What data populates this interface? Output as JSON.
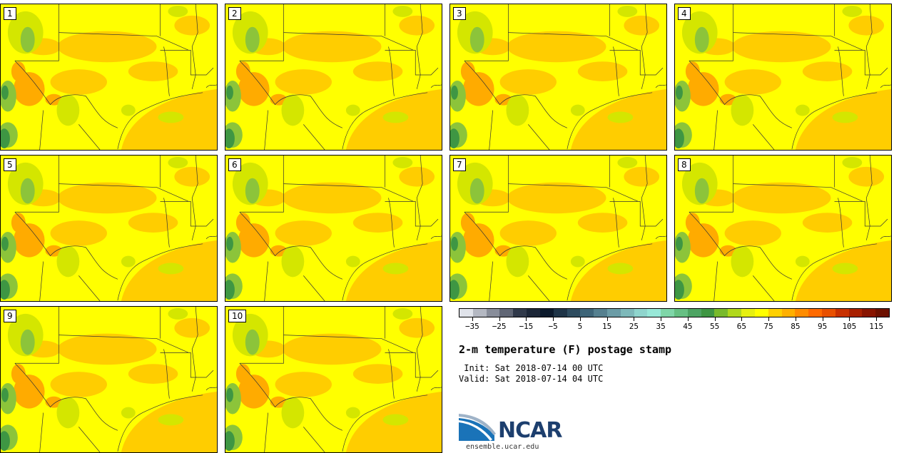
{
  "panels": [
    {
      "label": "1"
    },
    {
      "label": "2"
    },
    {
      "label": "3"
    },
    {
      "label": "4"
    },
    {
      "label": "5"
    },
    {
      "label": "6"
    },
    {
      "label": "7"
    },
    {
      "label": "8"
    },
    {
      "label": "9"
    },
    {
      "label": "10"
    }
  ],
  "colorbar": {
    "colors": [
      "#e0e3ea",
      "#b4b8c2",
      "#888d9a",
      "#606675",
      "#30394a",
      "#1c2637",
      "#0c1a2c",
      "#1e3447",
      "#2e4c5f",
      "#3e6578",
      "#55808f",
      "#6b9ca6",
      "#7eb9ba",
      "#8fd5cd",
      "#98e8d8",
      "#7fd6a8",
      "#66c083",
      "#4da463",
      "#3e9643",
      "#78ba2b",
      "#b0d81c",
      "#e6f010",
      "#ffff00",
      "#ffd000",
      "#ffb000",
      "#ff8c00",
      "#ff6a00",
      "#e85000",
      "#c83000",
      "#a82000",
      "#881400",
      "#6c1000"
    ],
    "ticks": [
      "-35",
      "-25",
      "-15",
      "-5",
      "5",
      "15",
      "25",
      "35",
      "45",
      "55",
      "65",
      "75",
      "85",
      "95",
      "105",
      "115"
    ]
  },
  "title": "2-m temperature (F) postage stamp",
  "init": " Init: Sat 2018-07-14 00 UTC",
  "valid": "Valid: Sat 2018-07-14 04 UTC",
  "logo": {
    "name": "NCAR",
    "url": "ensemble.ucar.edu"
  }
}
